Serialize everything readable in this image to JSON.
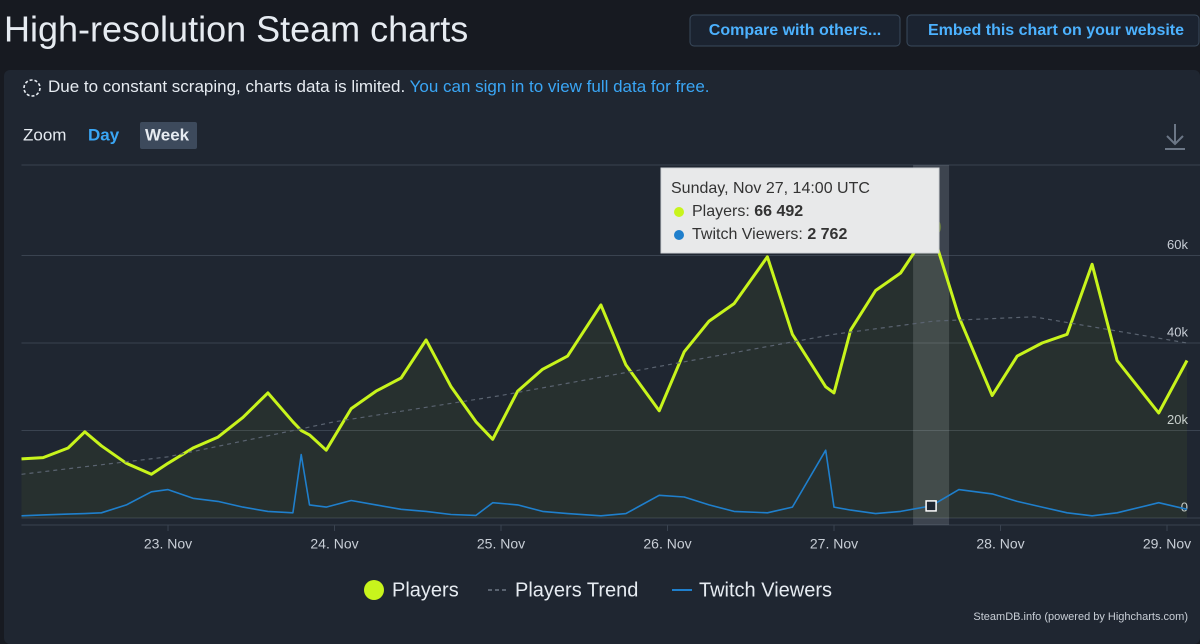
{
  "header": {
    "title": "High-resolution Steam charts",
    "buttons": [
      "Compare with others...",
      "Embed this chart on your website"
    ]
  },
  "notice": {
    "text": "Due to constant scraping, charts data is limited.",
    "link": "You can sign in to view full data for free."
  },
  "zoom": {
    "label": "Zoom",
    "options": [
      "Day",
      "Week"
    ]
  },
  "chart_data": {
    "type": "line",
    "x": [
      22.12,
      22.25,
      22.4,
      22.5,
      22.6,
      22.75,
      22.9,
      23.0,
      23.15,
      23.3,
      23.45,
      23.6,
      23.75,
      23.8,
      23.85,
      23.95,
      24.1,
      24.25,
      24.4,
      24.55,
      24.7,
      24.85,
      24.95,
      25.1,
      25.25,
      25.4,
      25.6,
      25.75,
      25.95,
      26.1,
      26.25,
      26.4,
      26.6,
      26.75,
      26.95,
      27.0,
      27.1,
      27.25,
      27.4,
      27.583,
      27.75,
      27.95,
      28.1,
      28.25,
      28.4,
      28.55,
      28.7,
      28.95,
      29.12
    ],
    "series": [
      {
        "name": "Players",
        "color": "#c8f41c",
        "values": [
          13500,
          13800,
          16000,
          19700,
          16500,
          12500,
          10000,
          12500,
          16000,
          18500,
          23000,
          28600,
          22000,
          20000,
          19000,
          15500,
          25000,
          29000,
          32000,
          40700,
          30000,
          22000,
          18000,
          29000,
          34000,
          37000,
          48700,
          35000,
          24500,
          38000,
          45000,
          49000,
          59700,
          42000,
          30000,
          28600,
          43000,
          52000,
          56000,
          66492,
          46000,
          28000,
          37000,
          40000,
          42000,
          58000,
          36000,
          24000,
          36000
        ]
      },
      {
        "name": "Players Trend",
        "color": "#5a6370",
        "x": [
          22.12,
          23,
          24,
          25,
          26,
          27,
          27.6,
          28.2,
          29.12
        ],
        "values": [
          10000,
          14000,
          22000,
          28000,
          35000,
          42000,
          45000,
          46000,
          40000
        ]
      },
      {
        "name": "Twitch Viewers",
        "color": "#1f7fcc",
        "values": [
          500,
          700,
          900,
          1000,
          1200,
          3000,
          6000,
          6500,
          4500,
          3800,
          2500,
          1500,
          1200,
          14500,
          3000,
          2500,
          4000,
          3000,
          2000,
          1500,
          800,
          600,
          3500,
          3000,
          1500,
          1000,
          500,
          1000,
          5200,
          4800,
          3000,
          1500,
          1200,
          2500,
          15500,
          2500,
          1800,
          1000,
          1500,
          2762,
          6500,
          5500,
          3800,
          2500,
          1200,
          500,
          1200,
          3500,
          2000
        ]
      }
    ],
    "xlim": [
      22.12,
      29.12
    ],
    "xticks": [
      {
        "value": 23,
        "label": "23. Nov"
      },
      {
        "value": 24,
        "label": "24. Nov"
      },
      {
        "value": 25,
        "label": "25. Nov"
      },
      {
        "value": 26,
        "label": "26. Nov"
      },
      {
        "value": 27,
        "label": "27. Nov"
      },
      {
        "value": 28,
        "label": "28. Nov"
      },
      {
        "value": 29,
        "label": "29. Nov"
      }
    ],
    "ylim": [
      0,
      80000
    ],
    "yticks": [
      0,
      {
        "value": 20000,
        "label": "20k"
      },
      {
        "value": 40000,
        "label": "40k"
      },
      {
        "value": 60000,
        "label": "60k"
      }
    ],
    "grid": true,
    "tooltip": {
      "title": "Sunday, Nov 27, 14:00 UTC",
      "labels": [
        "Players:",
        "Twitch Viewers:"
      ],
      "value_labels": [
        "66 492",
        "2 762"
      ]
    },
    "credit": "SteamDB.info (powered by Highcharts.com)"
  }
}
